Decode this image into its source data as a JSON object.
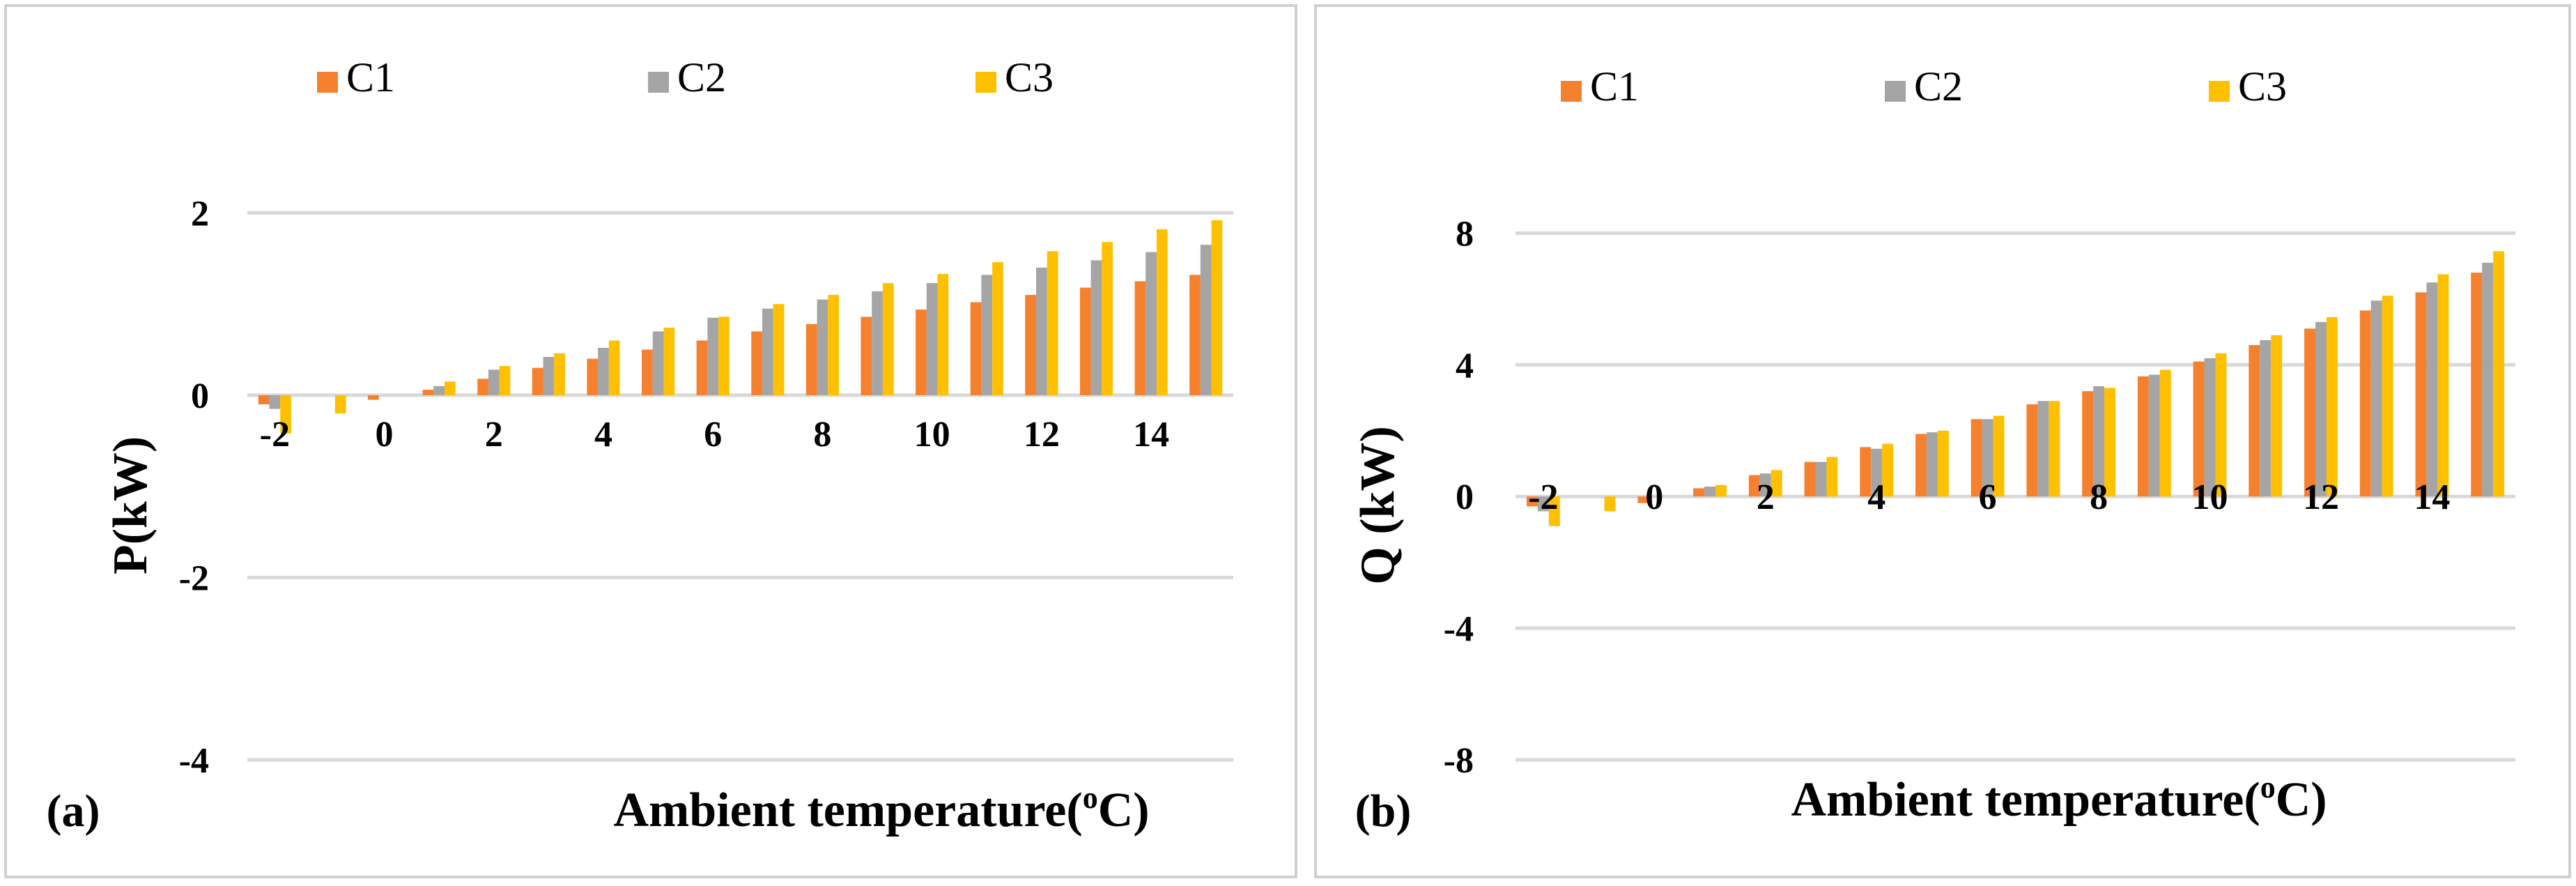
{
  "colors": {
    "C1": "#F5812E",
    "C2": "#A5A5A5",
    "C3": "#FFC000",
    "grid": "#D9D9D9",
    "frame": "#D0D0D0"
  },
  "chart_data": [
    {
      "type": "bar",
      "panel_label": "(a)",
      "xlabel": "Ambient temperature(",
      "xlabel_sup": "o",
      "xlabel_end": "C)",
      "ylabel": "P(kW)",
      "ylim": [
        -4,
        2.5
      ],
      "yticks": [
        -4,
        -2,
        0,
        2
      ],
      "ytick_labels": [
        "-4",
        "-2",
        "0",
        "2"
      ],
      "x": [
        -2,
        -1,
        0,
        1,
        2,
        3,
        4,
        5,
        6,
        7,
        8,
        9,
        10,
        11,
        12,
        13,
        14,
        15
      ],
      "xtick_labels": [
        "-2",
        "0",
        "2",
        "4",
        "6",
        "8",
        "10",
        "12",
        "14"
      ],
      "xtick_values": [
        -2,
        0,
        2,
        4,
        6,
        8,
        10,
        12,
        14
      ],
      "series": [
        {
          "name": "C1",
          "values": [
            -0.1,
            0,
            -0.05,
            0.06,
            0.18,
            0.3,
            0.4,
            0.5,
            0.6,
            0.7,
            0.78,
            0.86,
            0.94,
            1.02,
            1.1,
            1.18,
            1.25,
            1.32
          ]
        },
        {
          "name": "C2",
          "values": [
            -0.15,
            0,
            0,
            0.1,
            0.28,
            0.42,
            0.52,
            0.7,
            0.85,
            0.95,
            1.05,
            1.14,
            1.23,
            1.32,
            1.4,
            1.48,
            1.57,
            1.65
          ]
        },
        {
          "name": "C3",
          "values": [
            -0.42,
            -0.2,
            0,
            0.15,
            0.32,
            0.46,
            0.6,
            0.74,
            0.86,
            1.0,
            1.1,
            1.23,
            1.33,
            1.46,
            1.58,
            1.68,
            1.82,
            1.92
          ]
        }
      ],
      "legend": [
        "C1",
        "C2",
        "C3"
      ]
    },
    {
      "type": "bar",
      "panel_label": "(b)",
      "xlabel": "Ambient temperature(",
      "xlabel_sup": "o",
      "xlabel_end": "C)",
      "ylabel": "Q (kW)",
      "ylim": [
        -8,
        10
      ],
      "yticks": [
        -8,
        -4,
        0,
        4,
        8
      ],
      "ytick_labels": [
        "-8",
        "-4",
        "0",
        "4",
        "8"
      ],
      "x": [
        -2,
        -1,
        0,
        1,
        2,
        3,
        4,
        5,
        6,
        7,
        8,
        9,
        10,
        11,
        12,
        13,
        14,
        15
      ],
      "xtick_labels": [
        "-2",
        "0",
        "2",
        "4",
        "6",
        "8",
        "10",
        "12",
        "14"
      ],
      "xtick_values": [
        -2,
        0,
        2,
        4,
        6,
        8,
        10,
        12,
        14
      ],
      "series": [
        {
          "name": "C1",
          "values": [
            -0.3,
            0,
            -0.2,
            0.25,
            0.65,
            1.05,
            1.5,
            1.9,
            2.35,
            2.8,
            3.2,
            3.65,
            4.1,
            4.6,
            5.1,
            5.65,
            6.2,
            6.8
          ]
        },
        {
          "name": "C2",
          "values": [
            -0.45,
            0,
            0,
            0.3,
            0.7,
            1.05,
            1.45,
            1.95,
            2.35,
            2.9,
            3.35,
            3.7,
            4.2,
            4.75,
            5.3,
            5.95,
            6.5,
            7.1
          ]
        },
        {
          "name": "C3",
          "values": [
            -0.9,
            -0.45,
            0,
            0.35,
            0.8,
            1.2,
            1.6,
            2.0,
            2.45,
            2.9,
            3.3,
            3.85,
            4.35,
            4.9,
            5.45,
            6.1,
            6.75,
            7.45
          ]
        }
      ],
      "legend": [
        "C1",
        "C2",
        "C3"
      ]
    }
  ]
}
